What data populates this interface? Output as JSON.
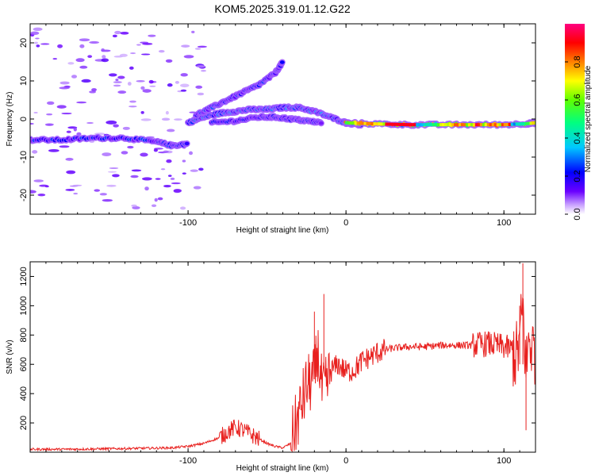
{
  "title": "KOM5.2025.319.01.12.G22",
  "chart_data": [
    {
      "type": "heatmap",
      "name": "spectrogram",
      "title": "",
      "xlabel": "Height of straight line (km)",
      "ylabel": "Frequency (Hz)",
      "xlim": [
        -200,
        120
      ],
      "ylim": [
        -25,
        25
      ],
      "xticks": [
        -100,
        0,
        100
      ],
      "xtick_labels": [
        "-100",
        "0",
        "100"
      ],
      "yticks": [
        -20,
        -10,
        0,
        10,
        20
      ],
      "ytick_labels": [
        "-20",
        "-10",
        "0",
        "10",
        "20"
      ],
      "ridges": [
        {
          "name": "left branch",
          "points": [
            [
              -200,
              -5.5
            ],
            [
              -180,
              -5.5
            ],
            [
              -160,
              -5
            ],
            [
              -140,
              -5
            ],
            [
              -120,
              -6
            ],
            [
              -110,
              -7
            ],
            [
              -100,
              -6.5
            ]
          ],
          "amplitude": 0.2
        },
        {
          "name": "rising branch low",
          "points": [
            [
              -100,
              -1
            ],
            [
              -90,
              0.5
            ],
            [
              -80,
              1.5
            ],
            [
              -70,
              2
            ],
            [
              -60,
              2.5
            ],
            [
              -50,
              2.5
            ],
            [
              -40,
              3
            ],
            [
              -30,
              3
            ],
            [
              -20,
              2
            ],
            [
              -10,
              0.5
            ],
            [
              0,
              -1
            ],
            [
              10,
              -1.5
            ]
          ],
          "amplitude": 0.25
        },
        {
          "name": "rising branch high",
          "points": [
            [
              -95,
              1
            ],
            [
              -85,
              3
            ],
            [
              -75,
              5
            ],
            [
              -65,
              7
            ],
            [
              -55,
              9
            ],
            [
              -45,
              12
            ],
            [
              -40,
              15
            ]
          ],
          "amplitude": 0.2
        },
        {
          "name": "lower curve",
          "points": [
            [
              -85,
              -1
            ],
            [
              -70,
              -0.5
            ],
            [
              -55,
              0.5
            ],
            [
              -45,
              0.5
            ],
            [
              -35,
              0
            ],
            [
              -25,
              -0.5
            ],
            [
              -15,
              -1
            ]
          ],
          "amplitude": 0.18
        },
        {
          "name": "main line",
          "points": [
            [
              0,
              -1
            ],
            [
              20,
              -1.3
            ],
            [
              40,
              -1.5
            ],
            [
              60,
              -1.5
            ],
            [
              80,
              -1.5
            ],
            [
              100,
              -1.5
            ],
            [
              115,
              -1.2
            ],
            [
              120,
              -1
            ]
          ],
          "amplitude": 0.6
        }
      ],
      "colorbar": {
        "label": "Normalized spectral amplitude",
        "range": [
          0,
          1
        ],
        "ticks": [
          0,
          0.2,
          0.4,
          0.6,
          0.8
        ],
        "tick_labels": [
          "0.0",
          "0.2",
          "0.4",
          "0.6",
          "0.8"
        ],
        "colors": [
          "#ffffff",
          "#c8a0ff",
          "#6a00ff",
          "#0000ff",
          "#00c8ff",
          "#00ff80",
          "#60ff00",
          "#ffff00",
          "#ff8000",
          "#ff0000",
          "#ff0080"
        ]
      }
    },
    {
      "type": "line",
      "name": "snr",
      "title": "",
      "xlabel": "Height of straight line (km)",
      "ylabel": "SNR (v/v)",
      "xlim": [
        -200,
        120
      ],
      "ylim": [
        0,
        1300
      ],
      "xticks": [
        -100,
        0,
        100
      ],
      "xtick_labels": [
        "-100",
        "0",
        "100"
      ],
      "yticks": [
        200,
        400,
        600,
        800,
        1000,
        1200
      ],
      "ytick_labels": [
        "200",
        "400",
        "600",
        "800",
        "1000",
        "1200"
      ],
      "color": "#e8201e",
      "series": [
        {
          "name": "SNR",
          "x": [
            -200,
            -180,
            -160,
            -140,
            -120,
            -110,
            -100,
            -90,
            -80,
            -75,
            -70,
            -65,
            -60,
            -55,
            -50,
            -45,
            -40,
            -35,
            -30,
            -25,
            -20,
            -18,
            -15,
            -12,
            -10,
            -5,
            0,
            5,
            10,
            15,
            20,
            25,
            30,
            40,
            50,
            60,
            70,
            80,
            90,
            100,
            105,
            108,
            110,
            112,
            114,
            116,
            118,
            120
          ],
          "y": [
            20,
            20,
            22,
            25,
            28,
            30,
            40,
            60,
            100,
            140,
            170,
            150,
            120,
            90,
            60,
            40,
            30,
            60,
            250,
            450,
            500,
            700,
            400,
            450,
            550,
            600,
            550,
            560,
            620,
            650,
            680,
            700,
            710,
            720,
            720,
            730,
            730,
            730,
            740,
            720,
            700,
            650,
            760,
            1000,
            550,
            800,
            700,
            720
          ]
        }
      ]
    }
  ]
}
